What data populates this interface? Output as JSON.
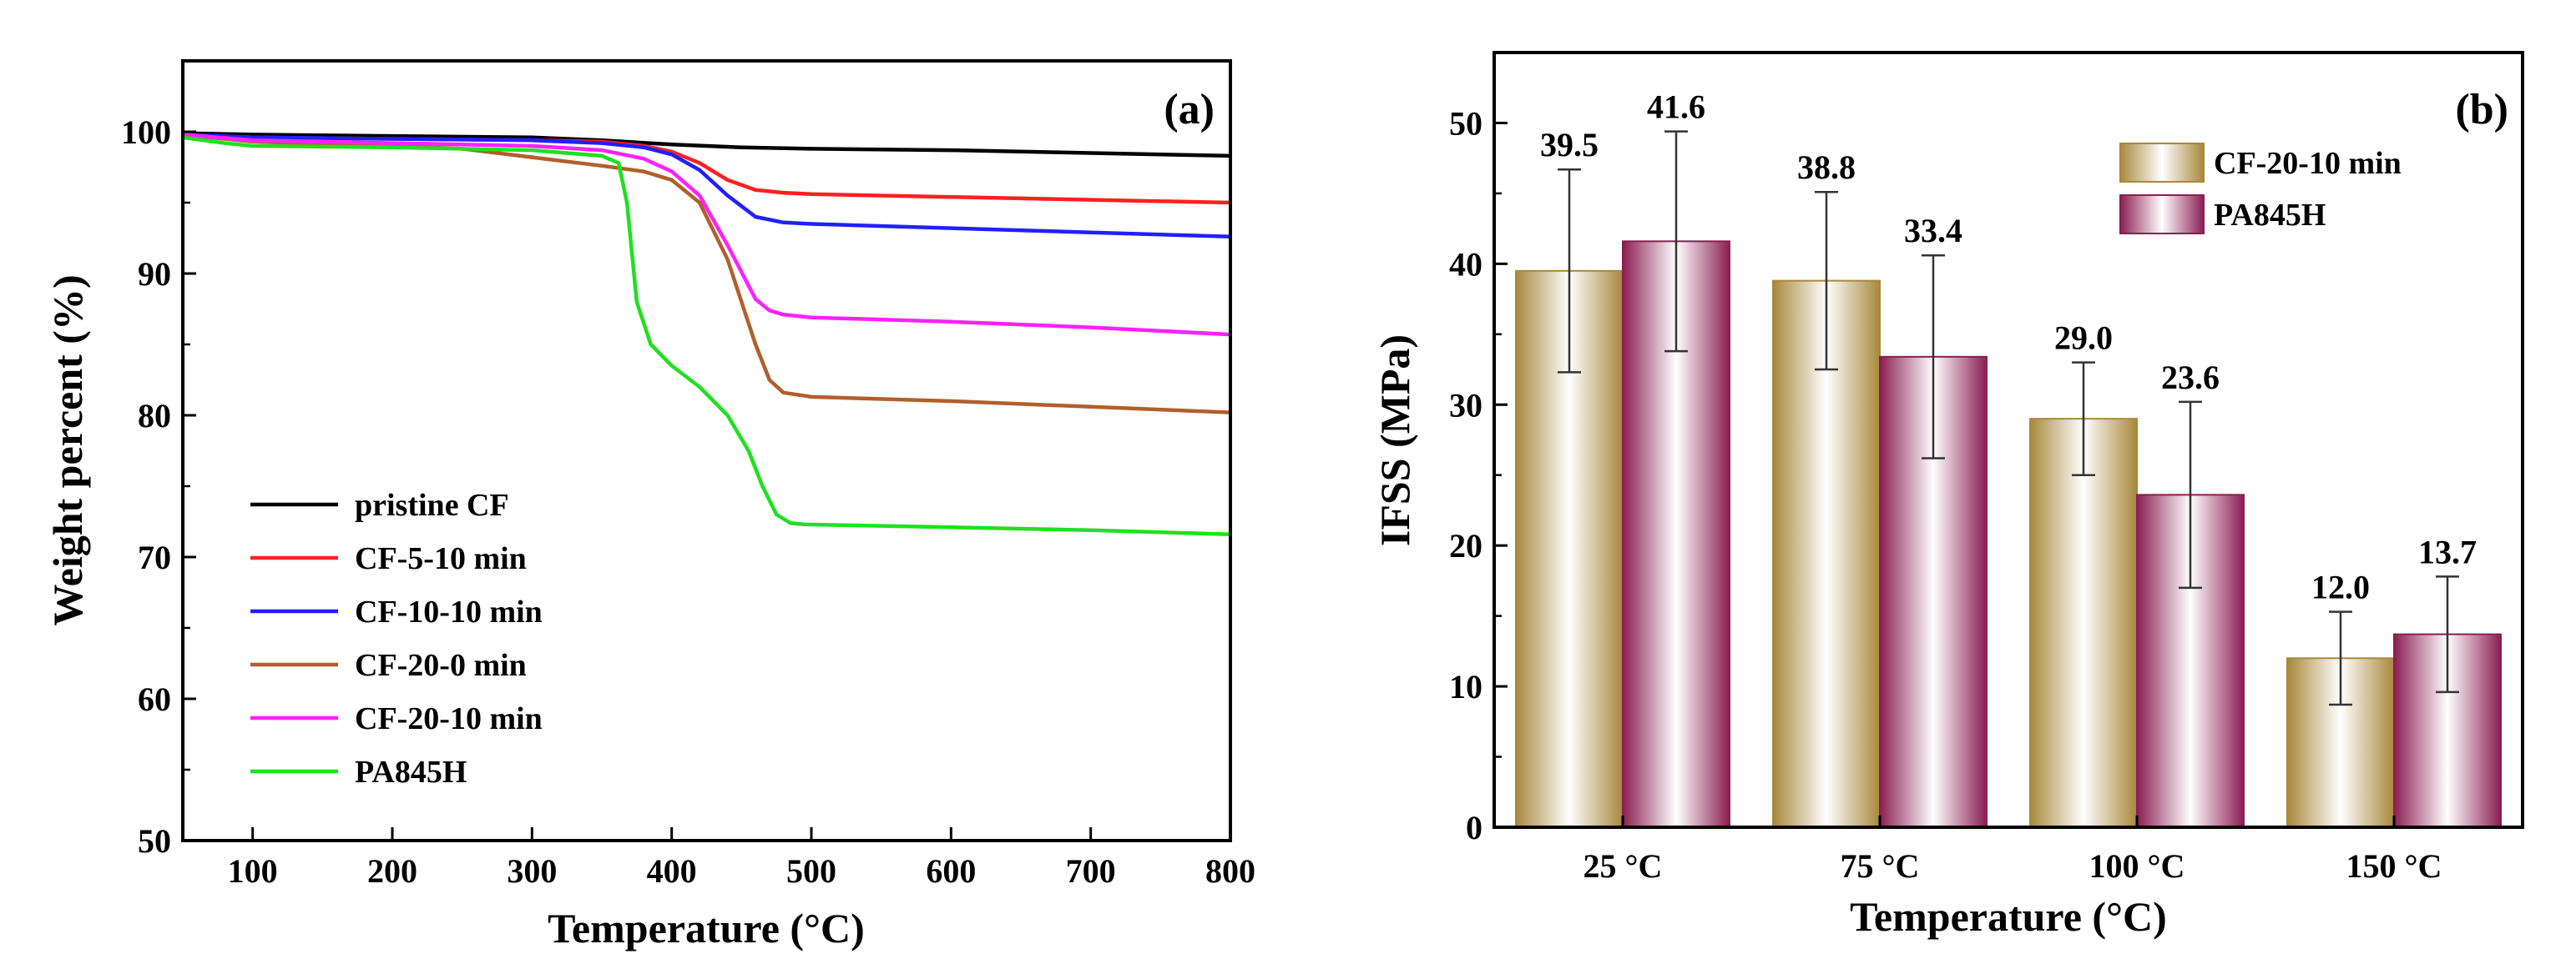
{
  "chart_data": [
    {
      "type": "line",
      "panel_label": "(a)",
      "xlabel": "Temperature (°C)",
      "ylabel": "Weight percent (%)",
      "xlim": [
        50,
        800
      ],
      "ylim": [
        50,
        105
      ],
      "xticks": [
        100,
        200,
        300,
        400,
        500,
        600,
        700,
        800
      ],
      "yticks": [
        50,
        60,
        70,
        80,
        90,
        100
      ],
      "legend_position": "bottom-left",
      "series": [
        {
          "name": "pristine CF",
          "color": "#000000",
          "x": [
            50,
            100,
            200,
            300,
            350,
            400,
            450,
            500,
            600,
            700,
            800
          ],
          "y": [
            99.9,
            99.8,
            99.7,
            99.6,
            99.4,
            99.1,
            98.9,
            98.8,
            98.7,
            98.5,
            98.3
          ]
        },
        {
          "name": "CF-5-10 min",
          "color": "#ff2020",
          "x": [
            50,
            100,
            200,
            300,
            350,
            380,
            400,
            420,
            440,
            460,
            480,
            500,
            600,
            700,
            800
          ],
          "y": [
            99.8,
            99.6,
            99.5,
            99.4,
            99.3,
            99.0,
            98.6,
            97.8,
            96.6,
            95.9,
            95.7,
            95.6,
            95.4,
            95.2,
            95.0
          ]
        },
        {
          "name": "CF-10-10 min",
          "color": "#2020ff",
          "x": [
            50,
            100,
            200,
            300,
            350,
            380,
            400,
            420,
            440,
            460,
            480,
            500,
            600,
            700,
            800
          ],
          "y": [
            99.8,
            99.6,
            99.5,
            99.4,
            99.2,
            98.9,
            98.4,
            97.3,
            95.5,
            94.0,
            93.6,
            93.5,
            93.2,
            92.9,
            92.6
          ]
        },
        {
          "name": "CF-20-0 min",
          "color": "#b0602a",
          "x": [
            50,
            100,
            200,
            250,
            300,
            350,
            380,
            400,
            420,
            440,
            460,
            470,
            480,
            500,
            600,
            700,
            800
          ],
          "y": [
            99.8,
            99.3,
            99.0,
            98.8,
            98.2,
            97.6,
            97.2,
            96.6,
            95.0,
            91.0,
            85.0,
            82.5,
            81.6,
            81.3,
            81.0,
            80.6,
            80.2
          ]
        },
        {
          "name": "CF-20-10 min",
          "color": "#ff20ff",
          "x": [
            50,
            100,
            200,
            300,
            350,
            380,
            400,
            420,
            440,
            460,
            470,
            480,
            500,
            600,
            700,
            800
          ],
          "y": [
            99.8,
            99.4,
            99.2,
            99.0,
            98.7,
            98.1,
            97.2,
            95.5,
            92.0,
            88.2,
            87.4,
            87.1,
            86.9,
            86.6,
            86.2,
            85.7
          ]
        },
        {
          "name": "PA845H",
          "color": "#20e020",
          "x": [
            50,
            80,
            100,
            200,
            300,
            350,
            362,
            368,
            375,
            385,
            400,
            420,
            440,
            455,
            465,
            475,
            485,
            495,
            600,
            700,
            800
          ],
          "y": [
            99.6,
            99.2,
            99.0,
            98.9,
            98.7,
            98.3,
            97.8,
            95.0,
            88.0,
            85.0,
            83.5,
            82.0,
            80.0,
            77.5,
            75.0,
            73.0,
            72.4,
            72.3,
            72.1,
            71.9,
            71.6
          ]
        }
      ]
    },
    {
      "type": "bar",
      "panel_label": "(b)",
      "xlabel": "Temperature (°C)",
      "ylabel": "IFSS (MPa)",
      "categories": [
        "25 °C",
        "75 °C",
        "100 °C",
        "150 °C"
      ],
      "ylim": [
        0,
        55
      ],
      "yticks": [
        0,
        10,
        20,
        30,
        40,
        50
      ],
      "legend_position": "top-right",
      "series": [
        {
          "name": "CF-20-10 min",
          "color": "#a8883c",
          "values": [
            39.5,
            38.8,
            29.0,
            12.0
          ],
          "value_labels": [
            "39.5",
            "38.8",
            "29.0",
            "12.0"
          ],
          "errors": [
            7.2,
            6.3,
            4.0,
            3.3
          ]
        },
        {
          "name": "PA845H",
          "color": "#8a1e52",
          "values": [
            41.6,
            33.4,
            23.6,
            13.7
          ],
          "value_labels": [
            "41.6",
            "33.4",
            "23.6",
            "13.7"
          ],
          "errors": [
            7.8,
            7.2,
            6.6,
            4.1
          ]
        }
      ]
    }
  ]
}
